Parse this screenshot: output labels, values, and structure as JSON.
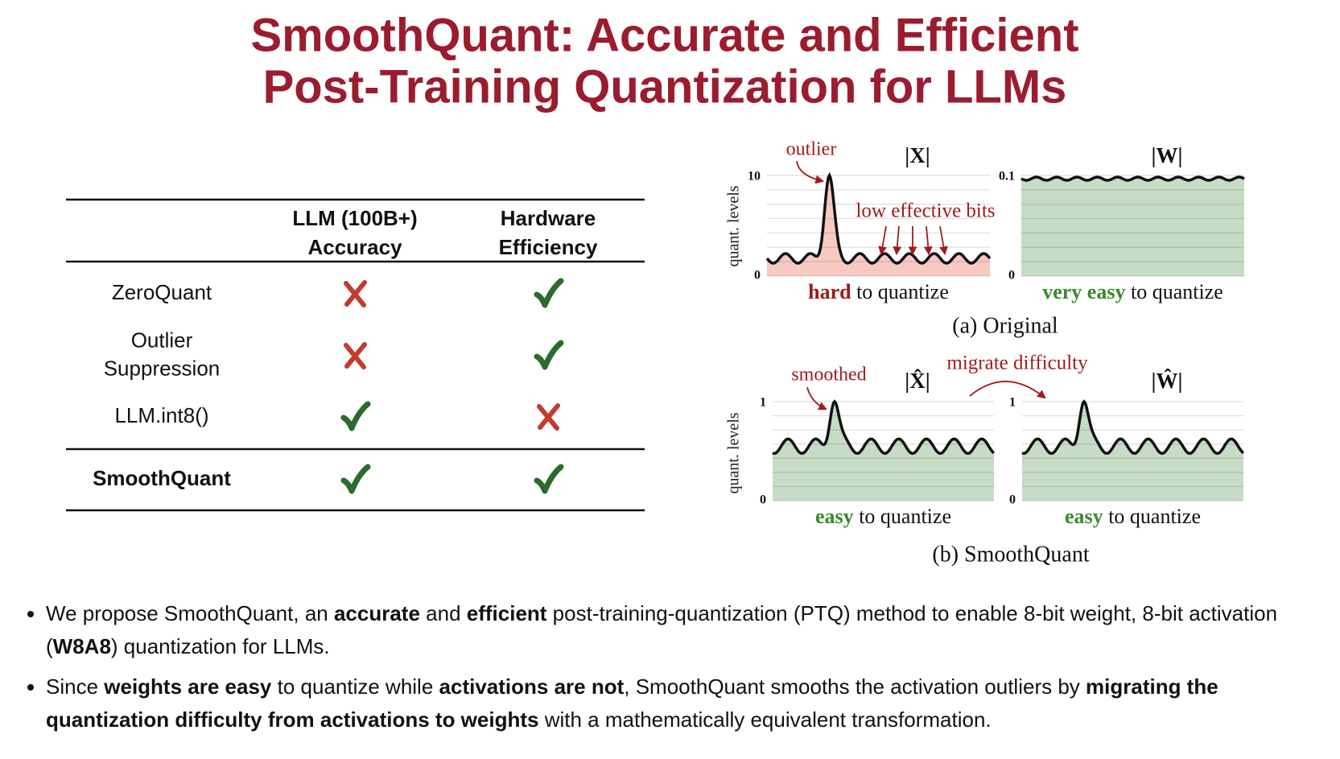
{
  "title": {
    "lines": [
      "SmoothQuant: Accurate and Efficient",
      "Post-Training Quantization for LLMs"
    ]
  },
  "table": {
    "header": [
      [
        "LLM (100B+)",
        "Accuracy"
      ],
      [
        "Hardware",
        "Efficiency"
      ]
    ],
    "rows": [
      {
        "method": [
          "ZeroQuant"
        ],
        "accuracy": false,
        "efficiency": true,
        "bold": false
      },
      {
        "method": [
          "Outlier",
          "Suppression"
        ],
        "accuracy": false,
        "efficiency": true,
        "bold": false
      },
      {
        "method": [
          "LLM.int8()"
        ],
        "accuracy": true,
        "efficiency": false,
        "bold": false
      },
      {
        "method": [
          "SmoothQuant"
        ],
        "accuracy": true,
        "efficiency": true,
        "bold": true
      }
    ]
  },
  "figure": {
    "y_axis_label": "quant. levels",
    "panels": [
      {
        "caption": "(a) Original",
        "plots": [
          {
            "name": "|X|",
            "ticks": [
              "10",
              "0"
            ],
            "callout": "outlier",
            "note": "low effective bits",
            "wave": "outlier",
            "fill": "#f8c9c3",
            "label": {
              "emphasis": "hard",
              "emphasis_color": "#9b1c1c",
              "rest": "to quantize"
            }
          },
          {
            "name": "|W|",
            "ticks": [
              "0.1",
              "0"
            ],
            "wave": "flat",
            "fill": "#c6dcc5",
            "label": {
              "emphasis": "very easy",
              "emphasis_color": "#3a8a2e",
              "rest": "to quantize"
            }
          }
        ]
      },
      {
        "caption": "(b) SmoothQuant",
        "transfer": "migrate difficulty",
        "plots": [
          {
            "name": "|X̂|",
            "ticks": [
              "1",
              "0"
            ],
            "callout": "smoothed",
            "wave": "smoothed",
            "fill": "#c6dcc5",
            "label": {
              "emphasis": "easy",
              "emphasis_color": "#3a8a2e",
              "rest": "to quantize"
            }
          },
          {
            "name": "|Ŵ|",
            "ticks": [
              "1",
              "0"
            ],
            "wave": "smoothed",
            "fill": "#c6dcc5",
            "label": {
              "emphasis": "easy",
              "emphasis_color": "#3a8a2e",
              "rest": "to quantize"
            }
          }
        ]
      }
    ]
  },
  "bullets": [
    [
      {
        "text": "We propose SmoothQuant, an ",
        "bold": false
      },
      {
        "text": "accurate",
        "bold": true
      },
      {
        "text": " and ",
        "bold": false
      },
      {
        "text": "efficient",
        "bold": true
      },
      {
        "text": " post-training-quantization (PTQ) method to enable 8-bit weight, 8-bit activation (",
        "bold": false
      },
      {
        "text": "W8A8",
        "bold": true
      },
      {
        "text": ") quantization for LLMs.",
        "bold": false
      }
    ],
    [
      {
        "text": "Since ",
        "bold": false
      },
      {
        "text": "weights are easy",
        "bold": true
      },
      {
        "text": " to quantize while ",
        "bold": false
      },
      {
        "text": "activations are not",
        "bold": true
      },
      {
        "text": ", SmoothQuant smooths the activation outliers by ",
        "bold": false
      },
      {
        "text": "migrating the quantization difficulty from activations to weights",
        "bold": true
      },
      {
        "text": " with a mathematically equivalent transformation.",
        "bold": false
      }
    ]
  ]
}
